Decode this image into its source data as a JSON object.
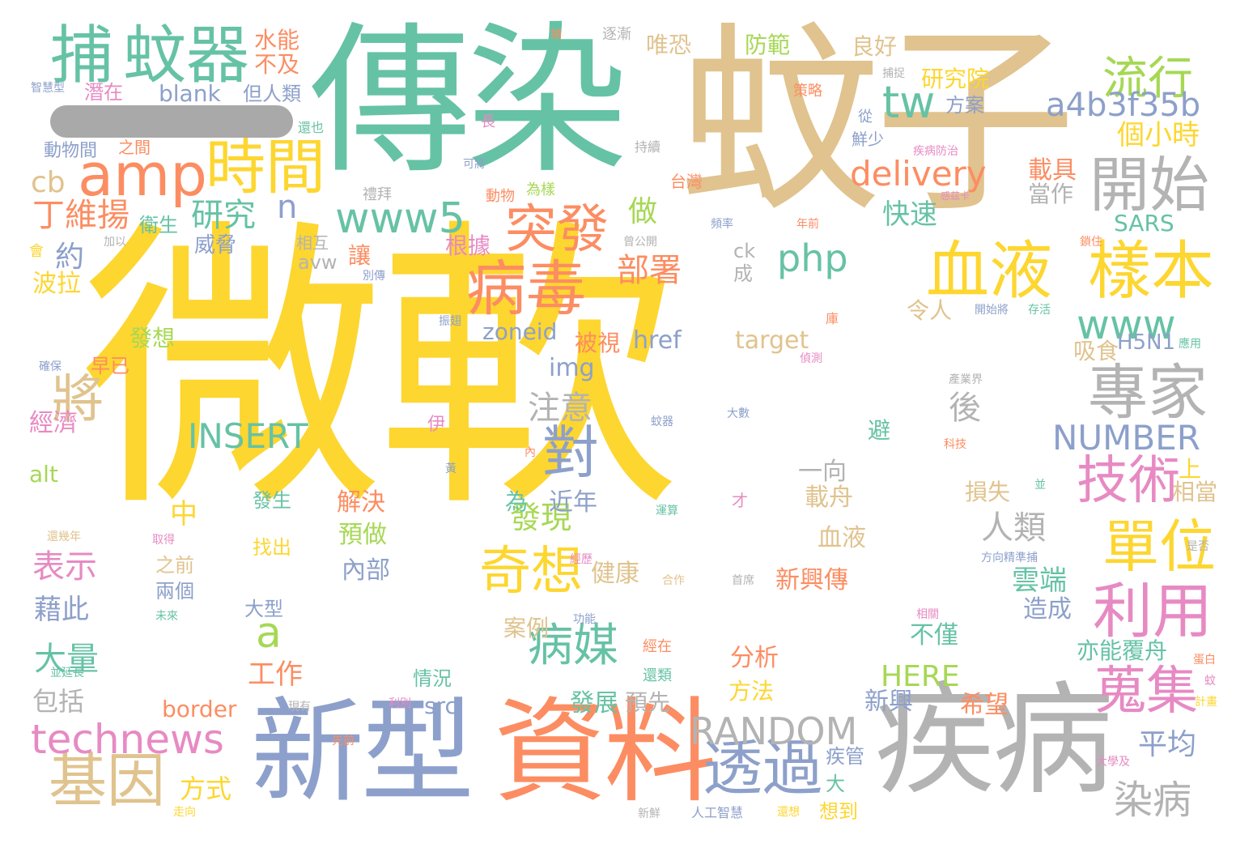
{
  "palette": {
    "yellow": "#fdd630",
    "teal": "#66c2a5",
    "tan": "#e0c38e",
    "salmon": "#fc8d62",
    "blue": "#8da0cb",
    "pink": "#e78ac3",
    "green": "#a6d854",
    "gray": "#b3b3b3"
  },
  "words": [
    {
      "text": "微軟",
      "color": "yellow"
    },
    {
      "text": "傳染",
      "color": "teal"
    },
    {
      "text": "蚊子",
      "color": "tan"
    },
    {
      "text": "新型",
      "color": "blue"
    },
    {
      "text": "資料",
      "color": "salmon"
    },
    {
      "text": "疾病",
      "color": "gray"
    },
    {
      "text": "捕",
      "color": "teal"
    },
    {
      "text": "蚊器",
      "color": "teal"
    },
    {
      "text": "amp",
      "color": "salmon"
    },
    {
      "text": "時間",
      "color": "yellow"
    },
    {
      "text": "血液",
      "color": "yellow"
    },
    {
      "text": "樣本",
      "color": "yellow"
    },
    {
      "text": "開始",
      "color": "gray"
    },
    {
      "text": "病毒",
      "color": "salmon"
    },
    {
      "text": "專家",
      "color": "gray"
    },
    {
      "text": "技術",
      "color": "pink"
    },
    {
      "text": "利用",
      "color": "pink"
    },
    {
      "text": "單位",
      "color": "yellow"
    },
    {
      "text": "蒐集",
      "color": "pink"
    },
    {
      "text": "基因",
      "color": "tan"
    },
    {
      "text": "透過",
      "color": "blue"
    },
    {
      "text": "technews",
      "color": "pink"
    },
    {
      "text": "www5",
      "color": "teal"
    },
    {
      "text": "突發",
      "color": "salmon"
    },
    {
      "text": "對",
      "color": "blue"
    },
    {
      "text": "奇想",
      "color": "yellow"
    },
    {
      "text": "病媒",
      "color": "teal"
    },
    {
      "text": "流行",
      "color": "green"
    },
    {
      "text": "tw",
      "color": "teal"
    },
    {
      "text": "a4b3f35b",
      "color": "blue"
    },
    {
      "text": "delivery",
      "color": "salmon"
    },
    {
      "text": "www",
      "color": "teal"
    },
    {
      "text": "RANDOM",
      "color": "gray"
    },
    {
      "text": "染病",
      "color": "gray"
    },
    {
      "text": "將",
      "color": "tan"
    },
    {
      "text": "NUMBER",
      "color": "blue"
    },
    {
      "text": "INSERT",
      "color": "teal"
    },
    {
      "text": "a",
      "color": "green"
    },
    {
      "text": "php",
      "color": "teal"
    },
    {
      "text": "研究",
      "color": "teal"
    },
    {
      "text": "丁維揚",
      "color": "salmon"
    },
    {
      "text": "n",
      "color": "blue"
    },
    {
      "text": "cb",
      "color": "tan"
    },
    {
      "text": "約",
      "color": "blue"
    },
    {
      "text": "表示",
      "color": "pink"
    },
    {
      "text": "大量",
      "color": "teal"
    },
    {
      "text": "藉此",
      "color": "blue"
    },
    {
      "text": "經濟",
      "color": "pink"
    },
    {
      "text": "部署",
      "color": "salmon"
    },
    {
      "text": "做",
      "color": "green"
    },
    {
      "text": "發現",
      "color": "green"
    },
    {
      "text": "中",
      "color": "yellow"
    },
    {
      "text": "方式",
      "color": "yellow"
    },
    {
      "text": "工作",
      "color": "salmon"
    },
    {
      "text": "平均",
      "color": "blue"
    },
    {
      "text": "雲端",
      "color": "teal"
    },
    {
      "text": "HERE",
      "color": "green"
    },
    {
      "text": "個小時",
      "color": "yellow"
    },
    {
      "text": "研究院",
      "color": "yellow"
    },
    {
      "text": "快速",
      "color": "teal"
    },
    {
      "text": "載具",
      "color": "salmon"
    },
    {
      "text": "SARS",
      "color": "teal"
    },
    {
      "text": "H5N1",
      "color": "blue"
    },
    {
      "text": "blank",
      "color": "blue"
    },
    {
      "text": "水能",
      "color": "salmon"
    },
    {
      "text": "不及",
      "color": "salmon"
    },
    {
      "text": "唯恐",
      "color": "tan"
    },
    {
      "text": "防範",
      "color": "green"
    },
    {
      "text": "良好",
      "color": "tan"
    },
    {
      "text": "方案",
      "color": "blue"
    },
    {
      "text": "潛在",
      "color": "pink"
    },
    {
      "text": "但人類",
      "color": "blue"
    },
    {
      "text": "動物間",
      "color": "blue"
    },
    {
      "text": "衛生",
      "color": "teal"
    },
    {
      "text": "波拉",
      "color": "yellow"
    },
    {
      "text": "發想",
      "color": "green"
    },
    {
      "text": "早已",
      "color": "salmon"
    },
    {
      "text": "alt",
      "color": "green"
    },
    {
      "text": "包括",
      "color": "gray"
    },
    {
      "text": "border",
      "color": "salmon"
    },
    {
      "text": "src",
      "color": "blue"
    },
    {
      "text": "情況",
      "color": "teal"
    },
    {
      "text": "內部",
      "color": "blue"
    },
    {
      "text": "兩個",
      "color": "blue"
    },
    {
      "text": "之前",
      "color": "tan"
    },
    {
      "text": "大型",
      "color": "blue"
    },
    {
      "text": "找出",
      "color": "yellow"
    },
    {
      "text": "預做",
      "color": "green"
    },
    {
      "text": "解決",
      "color": "salmon"
    },
    {
      "text": "發生",
      "color": "teal"
    },
    {
      "text": "為",
      "color": "teal"
    },
    {
      "text": "近年",
      "color": "blue"
    },
    {
      "text": "注意",
      "color": "gray"
    },
    {
      "text": "後",
      "color": "gray"
    },
    {
      "text": "一向",
      "color": "gray"
    },
    {
      "text": "人類",
      "color": "gray"
    },
    {
      "text": "載舟",
      "color": "tan"
    },
    {
      "text": "血液",
      "color": "tan"
    },
    {
      "text": "新興傳",
      "color": "salmon"
    },
    {
      "text": "健康",
      "color": "tan"
    },
    {
      "text": "案例",
      "color": "tan"
    },
    {
      "text": "不僅",
      "color": "teal"
    },
    {
      "text": "造成",
      "color": "blue"
    },
    {
      "text": "亦能覆舟",
      "color": "teal"
    },
    {
      "text": "分析",
      "color": "salmon"
    },
    {
      "text": "方法",
      "color": "yellow"
    },
    {
      "text": "發展",
      "color": "teal"
    },
    {
      "text": "預先",
      "color": "gray"
    },
    {
      "text": "新興",
      "color": "blue"
    },
    {
      "text": "希望",
      "color": "salmon"
    },
    {
      "text": "疾管",
      "color": "blue"
    },
    {
      "text": "大",
      "color": "teal"
    },
    {
      "text": "想到",
      "color": "yellow"
    },
    {
      "text": "損失",
      "color": "tan"
    },
    {
      "text": "相當",
      "color": "tan"
    },
    {
      "text": "上",
      "color": "yellow"
    },
    {
      "text": "吸食",
      "color": "tan"
    },
    {
      "text": "令人",
      "color": "tan"
    },
    {
      "text": "當作",
      "color": "gray"
    },
    {
      "text": "避",
      "color": "teal"
    },
    {
      "text": "zoneid",
      "color": "blue"
    },
    {
      "text": "target",
      "color": "tan"
    },
    {
      "text": "href",
      "color": "blue"
    },
    {
      "text": "img",
      "color": "blue"
    },
    {
      "text": "被視",
      "color": "salmon"
    },
    {
      "text": "根據",
      "color": "pink"
    },
    {
      "text": "讓",
      "color": "salmon"
    },
    {
      "text": "威脅",
      "color": "blue"
    },
    {
      "text": "avw",
      "color": "gray"
    },
    {
      "text": "相互",
      "color": "gray"
    },
    {
      "text": "ck",
      "color": "gray"
    },
    {
      "text": "成",
      "color": "gray"
    },
    {
      "text": "鮮少",
      "color": "blue"
    },
    {
      "text": "從",
      "color": "blue"
    },
    {
      "text": "策略",
      "color": "salmon"
    },
    {
      "text": "逐漸",
      "color": "gray"
    },
    {
      "text": "捕捉",
      "color": "gray"
    },
    {
      "text": "長",
      "color": "pink"
    },
    {
      "text": "還也",
      "color": "teal"
    },
    {
      "text": "之間",
      "color": "salmon"
    },
    {
      "text": "持續",
      "color": "gray"
    },
    {
      "text": "可將",
      "color": "blue"
    },
    {
      "text": "台灣",
      "color": "salmon"
    },
    {
      "text": "疾病防治",
      "color": "pink"
    },
    {
      "text": "禮拜",
      "color": "gray"
    },
    {
      "text": "動物",
      "color": "salmon"
    },
    {
      "text": "為樣",
      "color": "green"
    },
    {
      "text": "曾公開",
      "color": "gray"
    },
    {
      "text": "頻率",
      "color": "blue"
    },
    {
      "text": "年前",
      "color": "salmon"
    },
    {
      "text": "感茲卡",
      "color": "pink"
    },
    {
      "text": "鎖住",
      "color": "salmon"
    },
    {
      "text": "加以",
      "color": "gray"
    },
    {
      "text": "會",
      "color": "yellow"
    },
    {
      "text": "別傳",
      "color": "blue"
    },
    {
      "text": "振翅",
      "color": "blue"
    },
    {
      "text": "開始將",
      "color": "blue"
    },
    {
      "text": "存活",
      "color": "teal"
    },
    {
      "text": "應用",
      "color": "teal"
    },
    {
      "text": "庫",
      "color": "salmon"
    },
    {
      "text": "偵測",
      "color": "pink"
    },
    {
      "text": "確保",
      "color": "blue"
    },
    {
      "text": "產業界",
      "color": "gray"
    },
    {
      "text": "蚊器",
      "color": "blue"
    },
    {
      "text": "大數",
      "color": "blue"
    },
    {
      "text": "伊",
      "color": "pink"
    },
    {
      "text": "內",
      "color": "salmon"
    },
    {
      "text": "科技",
      "color": "salmon"
    },
    {
      "text": "黃",
      "color": "blue"
    },
    {
      "text": "並",
      "color": "teal"
    },
    {
      "text": "運算",
      "color": "teal"
    },
    {
      "text": "才",
      "color": "pink"
    },
    {
      "text": "還幾年",
      "color": "tan"
    },
    {
      "text": "取得",
      "color": "pink"
    },
    {
      "text": "經歷",
      "color": "pink"
    },
    {
      "text": "合作",
      "color": "tan"
    },
    {
      "text": "首席",
      "color": "gray"
    },
    {
      "text": "方向精準捕",
      "color": "blue"
    },
    {
      "text": "是否",
      "color": "gray"
    },
    {
      "text": "未來",
      "color": "teal"
    },
    {
      "text": "功能",
      "color": "blue"
    },
    {
      "text": "相關",
      "color": "pink"
    },
    {
      "text": "經在",
      "color": "salmon"
    },
    {
      "text": "還類",
      "color": "teal"
    },
    {
      "text": "蛋白",
      "color": "salmon"
    },
    {
      "text": "蚊",
      "color": "pink"
    },
    {
      "text": "計畫",
      "color": "yellow"
    },
    {
      "text": "並延長",
      "color": "teal"
    },
    {
      "text": "現有",
      "color": "gray"
    },
    {
      "text": "利別",
      "color": "pink"
    },
    {
      "text": "先前",
      "color": "salmon"
    },
    {
      "text": "走向",
      "color": "yellow"
    },
    {
      "text": "新鮮",
      "color": "gray"
    },
    {
      "text": "人工智慧",
      "color": "blue"
    },
    {
      "text": "還想",
      "color": "yellow"
    },
    {
      "text": "大學及",
      "color": "pink"
    },
    {
      "text": "智慧型",
      "color": "blue"
    },
    {
      "text": "捕",
      "color": "salmon"
    }
  ]
}
